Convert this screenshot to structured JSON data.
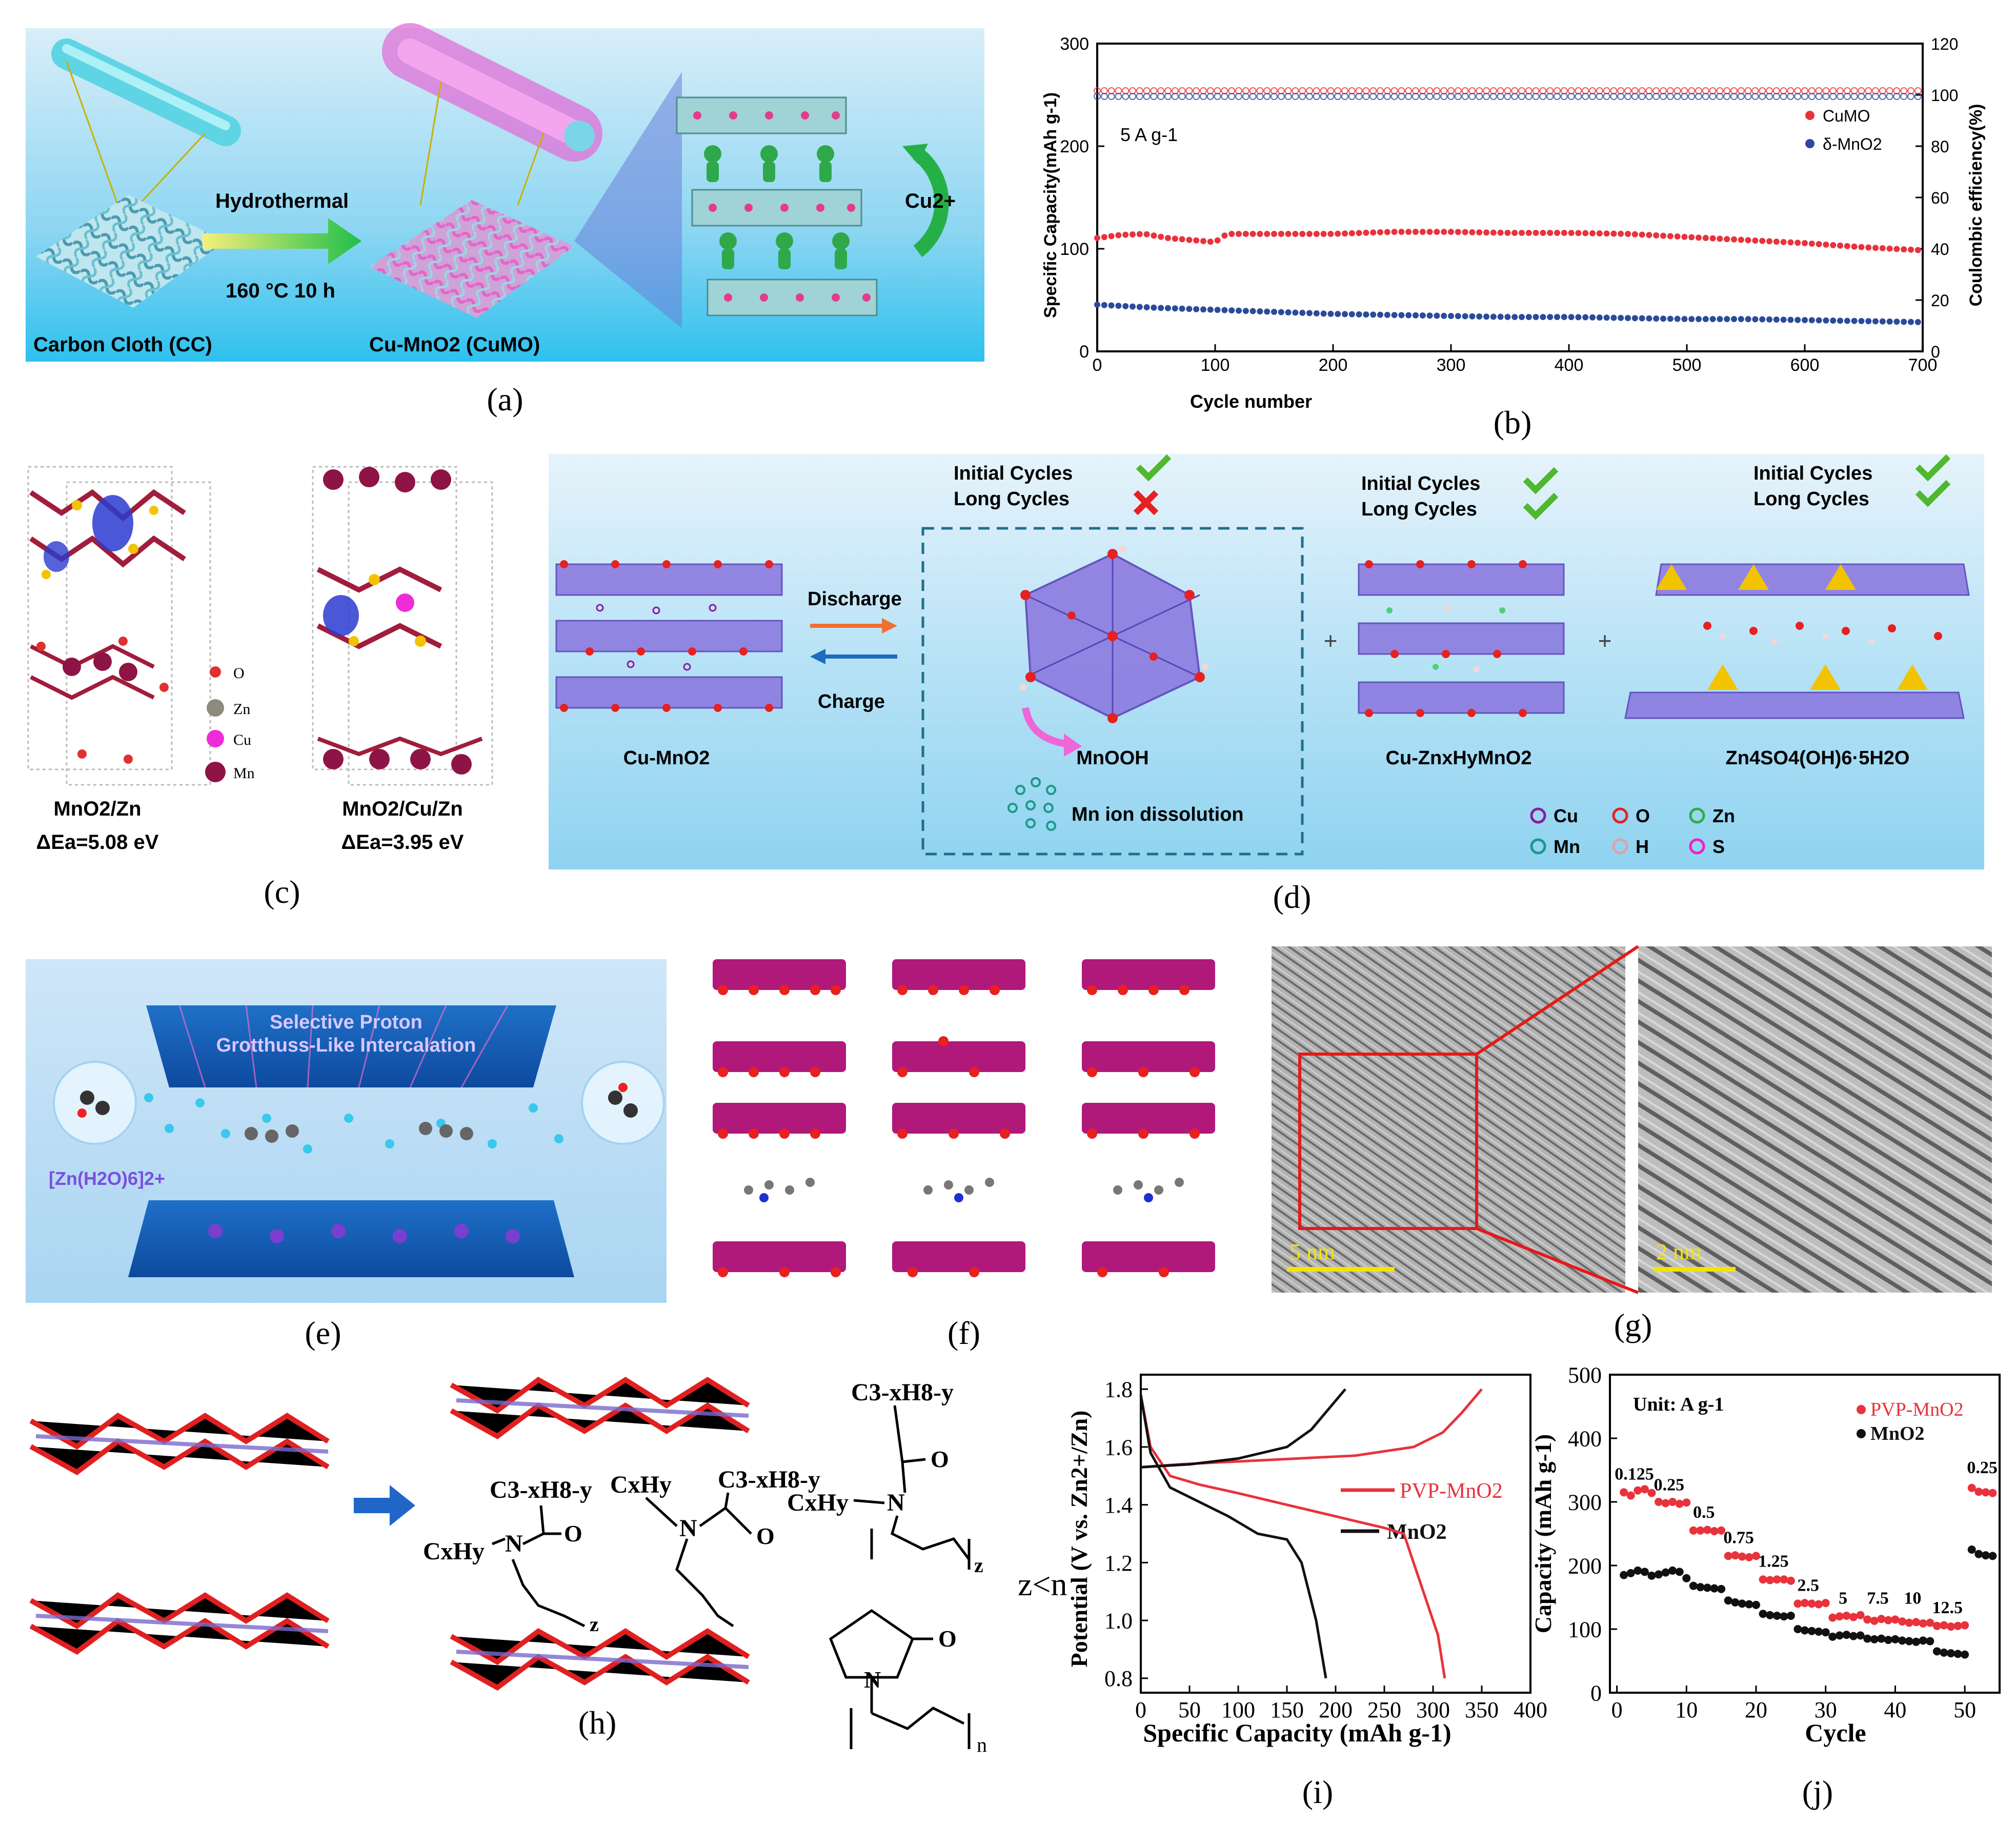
{
  "panel_labels": {
    "a": "(a)",
    "b": "(b)",
    "c": "(c)",
    "d": "(d)",
    "e": "(e)",
    "f": "(f)",
    "g": "(g)",
    "h": "(h)",
    "i": "(i)",
    "j": "(j)"
  },
  "panel_a": {
    "left_label": "Carbon Cloth (CC)",
    "arrow_top": "Hydrothermal",
    "arrow_bottom": "160 °C 10 h",
    "right_label": "Cu-MnO2 (CuMO)",
    "ion": "Cu2+"
  },
  "panel_c": {
    "legend": [
      "O",
      "Zn",
      "Cu",
      "Mn"
    ],
    "left_title": "MnO2/Zn",
    "left_energy": "ΔEa=5.08 eV",
    "right_title": "MnO2/Cu/Zn",
    "right_energy": "ΔEa=3.95 eV"
  },
  "panel_d": {
    "status_1": [
      "Initial Cycles",
      "Long Cycles"
    ],
    "status_2": [
      "Initial Cycles",
      "Long Cycles"
    ],
    "status_3": [
      "Initial Cycles",
      "Long Cycles"
    ],
    "discharge": "Discharge",
    "charge": "Charge",
    "cu_mno2": "Cu-MnO2",
    "mnooh": "MnOOH",
    "dissolution": "Mn ion dissolution",
    "cu_zn": "Cu-ZnxHyMnO2",
    "zhs": "Zn4SO4(OH)6·5H2O",
    "plus": "+",
    "legend": [
      "Cu",
      "O",
      "Zn",
      "Mn",
      "H",
      "S"
    ]
  },
  "panel_e": {
    "title_1": "Selective Proton",
    "title_2": "Grotthuss-Like Intercalation",
    "complex": "[Zn(H2O)6]2+"
  },
  "panel_g": {
    "scale_left": "5 nm",
    "scale_right": "2 nm"
  },
  "panel_h": {
    "sub_1": "C3-xH8-y",
    "sub_2": "CxHy",
    "sub_n": "n",
    "sub_z": "z",
    "o": "O",
    "n_atom": "N",
    "side": "z<n"
  },
  "chart_data": [
    {
      "id": "b",
      "type": "scatter",
      "title": "",
      "xlabel": "Cycle number",
      "ylabel": "Specific Capacity(mAh g-1)",
      "y2label": "Coulombic efficiency(%)",
      "annotation": "5 A g-1",
      "xlim": [
        0,
        700
      ],
      "ylim": [
        0,
        300
      ],
      "y2lim": [
        0,
        120
      ],
      "xticks": [
        "0",
        "100",
        "200",
        "300",
        "400",
        "500",
        "600",
        "700"
      ],
      "yticks": [
        "0",
        "100",
        "200",
        "300"
      ],
      "y2ticks": [
        "0",
        "20",
        "40",
        "60",
        "80",
        "100",
        "120"
      ],
      "legend": [
        {
          "name": "CuMO",
          "color": "#e8323c"
        },
        {
          "name": "δ-MnO2",
          "color": "#2b4a9a"
        }
      ],
      "series": [
        {
          "name": "CuMO",
          "axis": "left",
          "x": [
            0,
            20,
            40,
            60,
            80,
            100,
            110,
            150,
            200,
            250,
            300,
            350,
            400,
            450,
            500,
            550,
            600,
            650,
            700
          ],
          "values": [
            112,
            115,
            116,
            112,
            110,
            108,
            116,
            116,
            116,
            118,
            118,
            117,
            117,
            116,
            113,
            110,
            107,
            103,
            100
          ]
        },
        {
          "name": "δ-MnO2",
          "axis": "left",
          "x": [
            0,
            50,
            100,
            150,
            200,
            250,
            300,
            350,
            400,
            450,
            500,
            550,
            600,
            650,
            700
          ],
          "values": [
            47,
            44,
            42,
            40,
            38,
            37,
            36,
            35,
            35,
            34,
            33,
            33,
            32,
            31,
            30
          ]
        },
        {
          "name": "CuMO CE",
          "axis": "right",
          "x": [
            0,
            700
          ],
          "values": [
            101,
            101
          ]
        },
        {
          "name": "δ-MnO2 CE",
          "axis": "right",
          "x": [
            0,
            700
          ],
          "values": [
            100,
            100
          ]
        }
      ]
    },
    {
      "id": "i",
      "type": "line",
      "xlabel": "Specific Capacity (mAh g-1)",
      "ylabel": "Potential (V vs. Zn2+/Zn)",
      "xlim": [
        0,
        400
      ],
      "ylim": [
        0.75,
        1.85
      ],
      "xticks": [
        "0",
        "50",
        "100",
        "150",
        "200",
        "250",
        "300",
        "350",
        "400"
      ],
      "yticks": [
        "0.8",
        "1.0",
        "1.2",
        "1.4",
        "1.6",
        "1.8"
      ],
      "legend": [
        {
          "name": "PVP-MnO2",
          "color": "#e8323c"
        },
        {
          "name": "MnO2",
          "color": "#111111"
        }
      ],
      "series": [
        {
          "name": "PVP-MnO2 charge",
          "color": "#e8323c",
          "x": [
            0,
            40,
            100,
            160,
            220,
            280,
            310,
            330,
            350
          ],
          "values": [
            1.53,
            1.54,
            1.55,
            1.56,
            1.57,
            1.6,
            1.65,
            1.72,
            1.8
          ]
        },
        {
          "name": "PVP-MnO2 discharge",
          "color": "#e8323c",
          "x": [
            0,
            10,
            30,
            60,
            100,
            150,
            200,
            250,
            270,
            290,
            305,
            312
          ],
          "values": [
            1.78,
            1.6,
            1.5,
            1.47,
            1.44,
            1.4,
            1.36,
            1.32,
            1.3,
            1.1,
            0.95,
            0.8
          ]
        },
        {
          "name": "MnO2 charge",
          "color": "#111111",
          "x": [
            0,
            50,
            100,
            150,
            175,
            195,
            210
          ],
          "values": [
            1.53,
            1.54,
            1.56,
            1.6,
            1.66,
            1.74,
            1.8
          ]
        },
        {
          "name": "MnO2 discharge",
          "color": "#111111",
          "x": [
            0,
            10,
            30,
            60,
            90,
            120,
            150,
            165,
            180,
            190
          ],
          "values": [
            1.78,
            1.58,
            1.46,
            1.41,
            1.36,
            1.3,
            1.28,
            1.2,
            1.0,
            0.8
          ]
        }
      ]
    },
    {
      "id": "j",
      "type": "scatter",
      "xlabel": "Cycle",
      "ylabel": "Capacity (mAh g-1)",
      "annotation": "Unit: A g-1",
      "xlim": [
        -1,
        55
      ],
      "ylim": [
        0,
        500
      ],
      "xticks": [
        "0",
        "10",
        "20",
        "30",
        "40",
        "50"
      ],
      "yticks": [
        "0",
        "100",
        "200",
        "300",
        "400",
        "500"
      ],
      "legend": [
        {
          "name": "PVP-MnO2",
          "color": "#e8323c"
        },
        {
          "name": "MnO2",
          "color": "#111111"
        }
      ],
      "rate_labels": [
        "0.125",
        "0.25",
        "0.5",
        "0.75",
        "1.25",
        "2.5",
        "5",
        "7.5",
        "10",
        "12.5",
        "0.25"
      ],
      "series": [
        {
          "name": "PVP-MnO2",
          "color": "#e8323c",
          "x": [
            1,
            2,
            3,
            4,
            5,
            6,
            7,
            8,
            9,
            10,
            11,
            12,
            13,
            14,
            15,
            16,
            17,
            18,
            19,
            20,
            21,
            22,
            23,
            24,
            25,
            26,
            27,
            28,
            29,
            30,
            31,
            32,
            33,
            34,
            35,
            36,
            37,
            38,
            39,
            40,
            41,
            42,
            43,
            44,
            45,
            46,
            47,
            48,
            49,
            50,
            51,
            52,
            53,
            54
          ],
          "values": [
            315,
            310,
            318,
            320,
            314,
            300,
            298,
            300,
            297,
            299,
            255,
            255,
            256,
            254,
            255,
            215,
            216,
            214,
            213,
            215,
            178,
            177,
            178,
            178,
            176,
            140,
            141,
            140,
            139,
            141,
            118,
            120,
            121,
            119,
            122,
            115,
            113,
            116,
            114,
            115,
            112,
            110,
            111,
            109,
            110,
            105,
            106,
            104,
            105,
            106,
            322,
            316,
            315,
            314
          ]
        },
        {
          "name": "MnO2",
          "color": "#111111",
          "x": [
            1,
            2,
            3,
            4,
            5,
            6,
            7,
            8,
            9,
            10,
            11,
            12,
            13,
            14,
            15,
            16,
            17,
            18,
            19,
            20,
            21,
            22,
            23,
            24,
            25,
            26,
            27,
            28,
            29,
            30,
            31,
            32,
            33,
            34,
            35,
            36,
            37,
            38,
            39,
            40,
            41,
            42,
            43,
            44,
            45,
            46,
            47,
            48,
            49,
            50,
            51,
            52,
            53,
            54
          ],
          "values": [
            185,
            188,
            192,
            190,
            184,
            186,
            189,
            192,
            190,
            180,
            168,
            166,
            165,
            164,
            163,
            145,
            142,
            140,
            139,
            138,
            124,
            122,
            121,
            120,
            121,
            100,
            98,
            97,
            96,
            95,
            88,
            90,
            91,
            89,
            90,
            85,
            84,
            85,
            83,
            84,
            82,
            81,
            80,
            82,
            81,
            65,
            63,
            62,
            61,
            60,
            225,
            218,
            216,
            215
          ]
        }
      ]
    }
  ]
}
